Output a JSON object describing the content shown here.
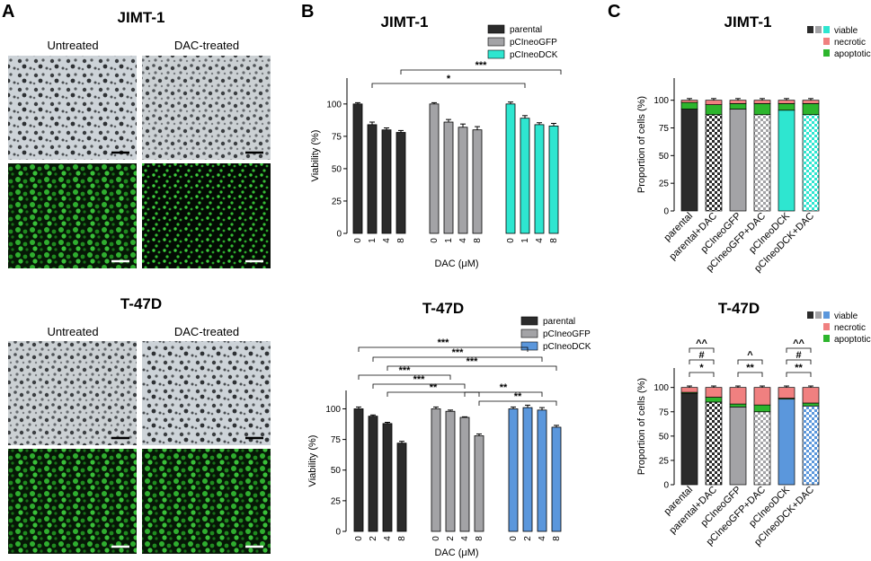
{
  "panels": {
    "a": "A",
    "b": "B",
    "c": "C"
  },
  "micrographs": {
    "top": {
      "title": "JIMT-1",
      "left": "Untreated",
      "right": "DAC-treated"
    },
    "bottom": {
      "title": "T-47D",
      "left": "Untreated",
      "right": "DAC-treated"
    }
  },
  "colors": {
    "parental": "#2b2b2b",
    "pCIneoGFP": "#a3a3a6",
    "pCIneoDCK_jimt": "#2ee6d0",
    "pCIneoDCK_t47d": "#5b97dc",
    "necrotic": "#f08080",
    "apoptotic": "#2db52d"
  },
  "chart_data": [
    {
      "type": "bar",
      "title": "JIMT-1",
      "xlabel": "DAC (μM)",
      "ylabel": "Viability (%)",
      "ylim": [
        0,
        120
      ],
      "yticks": [
        0,
        25,
        50,
        75,
        100
      ],
      "grid": false,
      "legend_position": "top-right",
      "categories": [
        "0",
        "1",
        "4",
        "8"
      ],
      "series": [
        {
          "name": "parental",
          "values": [
            100,
            84,
            80,
            78
          ],
          "err": [
            1,
            2,
            1.5,
            1.5
          ]
        },
        {
          "name": "pCIneoGFP",
          "values": [
            100,
            86,
            82,
            80
          ],
          "err": [
            1,
            2,
            2.5,
            2.5
          ]
        },
        {
          "name": "pCIneoDCK",
          "values": [
            100,
            89,
            84,
            83
          ],
          "err": [
            1.5,
            2,
            1.5,
            2
          ]
        }
      ],
      "significance": [
        "*",
        "***"
      ]
    },
    {
      "type": "bar",
      "title": "T-47D",
      "xlabel": "DAC (μM)",
      "ylabel": "Viability (%)",
      "ylim": [
        0,
        115
      ],
      "yticks": [
        0,
        25,
        50,
        75,
        100
      ],
      "grid": false,
      "legend_position": "top-right",
      "categories": [
        "0",
        "2",
        "4",
        "8"
      ],
      "series": [
        {
          "name": "parental",
          "values": [
            100,
            94,
            88,
            72
          ],
          "err": [
            1.5,
            1,
            1,
            1.5
          ]
        },
        {
          "name": "pCIneoGFP",
          "values": [
            100,
            98,
            93,
            78
          ],
          "err": [
            1.5,
            1,
            0.5,
            1.5
          ]
        },
        {
          "name": "pCIneoDCK",
          "values": [
            100,
            101,
            99,
            85
          ],
          "err": [
            1.5,
            2,
            2,
            1.5
          ]
        }
      ],
      "significance": [
        "***",
        "***",
        "***",
        "***",
        "***",
        "**",
        "**",
        "**"
      ]
    },
    {
      "type": "bar",
      "stacked": true,
      "title": "JIMT-1",
      "ylabel": "Proportion of cells (%)",
      "ylim": [
        0,
        120
      ],
      "yticks": [
        0,
        25,
        50,
        75,
        100
      ],
      "grid": false,
      "legend_position": "top-right",
      "legend": [
        "viable",
        "necrotic",
        "apoptotic"
      ],
      "categories": [
        "parental",
        "parental+DAC",
        "pCIneoGFP",
        "pCIneoGFP+DAC",
        "pCIneoDCK",
        "pCIneoDCK+DAC"
      ],
      "series": [
        {
          "name": "viable",
          "values": [
            92,
            87,
            92,
            87,
            91,
            87
          ]
        },
        {
          "name": "apoptotic",
          "values": [
            6,
            9,
            5,
            10,
            6,
            10
          ]
        },
        {
          "name": "necrotic",
          "values": [
            2,
            4,
            3,
            3,
            3,
            3
          ]
        }
      ],
      "significance": []
    },
    {
      "type": "bar",
      "stacked": true,
      "title": "T-47D",
      "ylabel": "Proportion of cells (%)",
      "ylim": [
        0,
        120
      ],
      "yticks": [
        0,
        25,
        50,
        75,
        100
      ],
      "grid": false,
      "legend_position": "top-right",
      "legend": [
        "viable",
        "necrotic",
        "apoptotic"
      ],
      "categories": [
        "parental",
        "parental+DAC",
        "pCIneoGFP",
        "pCIneoGFP+DAC",
        "pCIneoDCK",
        "pCIneoDCK+DAC"
      ],
      "series": [
        {
          "name": "viable",
          "values": [
            94,
            85,
            80,
            75,
            88,
            81
          ]
        },
        {
          "name": "apoptotic",
          "values": [
            1,
            5,
            3,
            7,
            1,
            3
          ]
        },
        {
          "name": "necrotic",
          "values": [
            5,
            10,
            17,
            18,
            11,
            16
          ]
        }
      ],
      "significance": [
        "^^",
        "#",
        "*",
        "^",
        "**",
        "^^",
        "#",
        "**"
      ]
    }
  ]
}
